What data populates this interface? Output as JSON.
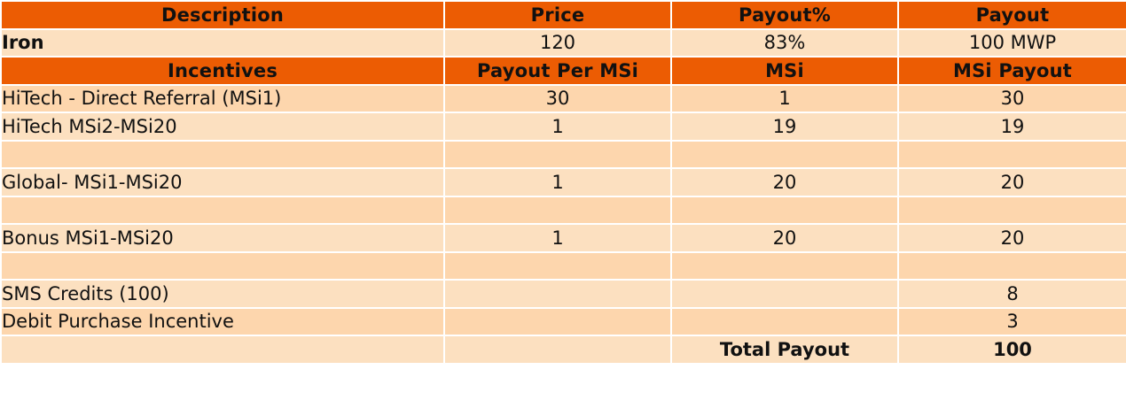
{
  "colors": {
    "header_bg": "#ec5c03",
    "header_text": "#ffffff",
    "row_bg_light": "#fce0c0",
    "row_bg_dark": "#fdd6ad"
  },
  "header1": {
    "description": "Description",
    "price": "Price",
    "payout_pct": "Payout%",
    "payout": "Payout"
  },
  "product": {
    "name": "Iron",
    "price": "120",
    "payout_pct": "83%",
    "payout": "100 MWP"
  },
  "header2": {
    "incentives": "Incentives",
    "payout_per_msi": "Payout Per MSi",
    "msi": "MSi",
    "msi_payout": "MSi Payout"
  },
  "rows": [
    {
      "label": "HiTech - Direct Referral (MSi1)",
      "payout_per_msi": "30",
      "msi": "1",
      "msi_payout": "30"
    },
    {
      "label": "HiTech MSi2-MSi20",
      "payout_per_msi": "1",
      "msi": "19",
      "msi_payout": "19"
    },
    {
      "label": "",
      "payout_per_msi": "",
      "msi": "",
      "msi_payout": ""
    },
    {
      "label": "Global- MSi1-MSi20",
      "payout_per_msi": "1",
      "msi": "20",
      "msi_payout": "20"
    },
    {
      "label": "",
      "payout_per_msi": "",
      "msi": "",
      "msi_payout": ""
    },
    {
      "label": "Bonus MSi1-MSi20",
      "payout_per_msi": "1",
      "msi": "20",
      "msi_payout": "20"
    },
    {
      "label": "",
      "payout_per_msi": "",
      "msi": "",
      "msi_payout": ""
    },
    {
      "label": "SMS Credits (100)",
      "payout_per_msi": "",
      "msi": "",
      "msi_payout": "8"
    },
    {
      "label": "Debit Purchase Incentive",
      "payout_per_msi": "",
      "msi": "",
      "msi_payout": "3"
    }
  ],
  "total": {
    "label": "Total Payout",
    "value": "100"
  }
}
